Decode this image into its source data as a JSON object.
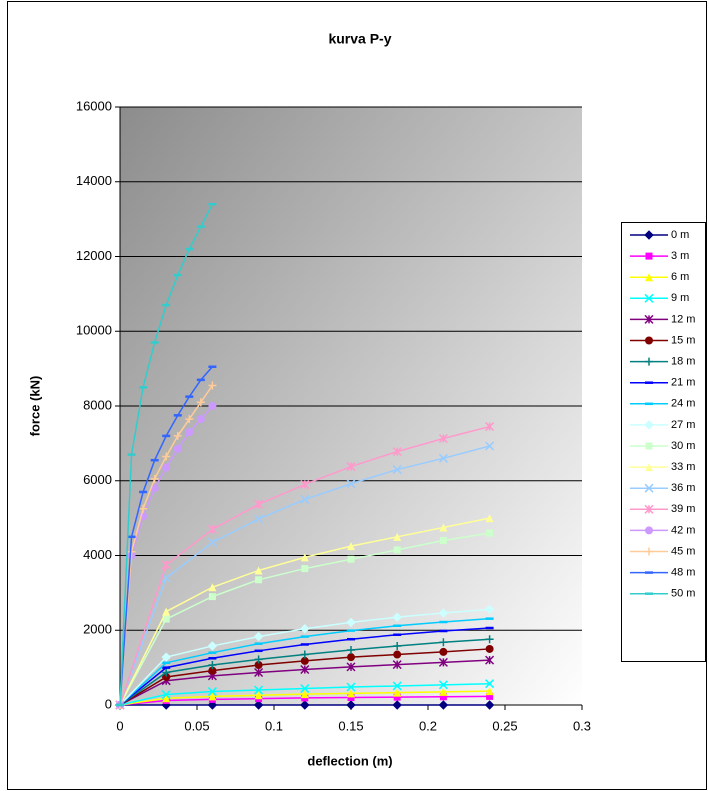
{
  "chart_data": {
    "type": "line",
    "title": "kurva P-y",
    "x_label": "deflection (m)",
    "y_label": "force (kN)",
    "xlim": [
      0,
      0.3
    ],
    "xticks": [
      0,
      0.05,
      0.1,
      0.15,
      0.2,
      0.25,
      0.3
    ],
    "ylim": [
      0,
      16000
    ],
    "yticks": [
      0,
      2000,
      4000,
      6000,
      8000,
      10000,
      12000,
      14000,
      16000
    ],
    "grid": true,
    "legend": "right",
    "series": [
      {
        "name": "0 m",
        "color": "#000080",
        "marker": "diamond",
        "x": [
          0,
          0.03,
          0.06,
          0.09,
          0.12,
          0.15,
          0.18,
          0.21,
          0.24
        ],
        "values": [
          0,
          0,
          0,
          0,
          0,
          0,
          0,
          0,
          0
        ]
      },
      {
        "name": "3 m",
        "color": "#ff00ff",
        "marker": "square",
        "x": [
          0,
          0.03,
          0.06,
          0.09,
          0.12,
          0.15,
          0.18,
          0.21,
          0.24
        ],
        "values": [
          0,
          120,
          150,
          170,
          190,
          200,
          210,
          220,
          230
        ]
      },
      {
        "name": "6 m",
        "color": "#ffff00",
        "marker": "triangle",
        "x": [
          0,
          0.03,
          0.06,
          0.09,
          0.12,
          0.15,
          0.18,
          0.21,
          0.24
        ],
        "values": [
          0,
          180,
          230,
          260,
          290,
          310,
          330,
          350,
          370
        ]
      },
      {
        "name": "9 m",
        "color": "#00ffff",
        "marker": "x",
        "x": [
          0,
          0.03,
          0.06,
          0.09,
          0.12,
          0.15,
          0.18,
          0.21,
          0.24
        ],
        "values": [
          0,
          280,
          360,
          400,
          440,
          480,
          510,
          540,
          570
        ]
      },
      {
        "name": "12 m",
        "color": "#800080",
        "marker": "star",
        "x": [
          0,
          0.03,
          0.06,
          0.09,
          0.12,
          0.15,
          0.18,
          0.21,
          0.24
        ],
        "values": [
          0,
          650,
          780,
          870,
          950,
          1020,
          1080,
          1140,
          1200
        ]
      },
      {
        "name": "15 m",
        "color": "#800000",
        "marker": "circle",
        "x": [
          0,
          0.03,
          0.06,
          0.09,
          0.12,
          0.15,
          0.18,
          0.21,
          0.24
        ],
        "values": [
          0,
          750,
          920,
          1070,
          1180,
          1280,
          1350,
          1420,
          1500
        ]
      },
      {
        "name": "18 m",
        "color": "#008080",
        "marker": "plus",
        "x": [
          0,
          0.03,
          0.06,
          0.09,
          0.12,
          0.15,
          0.18,
          0.21,
          0.24
        ],
        "values": [
          0,
          870,
          1070,
          1220,
          1350,
          1470,
          1580,
          1680,
          1760
        ]
      },
      {
        "name": "21 m",
        "color": "#0000ff",
        "marker": "dash",
        "x": [
          0,
          0.03,
          0.06,
          0.09,
          0.12,
          0.15,
          0.18,
          0.21,
          0.24
        ],
        "values": [
          0,
          1000,
          1250,
          1450,
          1620,
          1760,
          1880,
          1980,
          2060
        ]
      },
      {
        "name": "24 m",
        "color": "#00ccff",
        "marker": "dash",
        "x": [
          0,
          0.03,
          0.06,
          0.09,
          0.12,
          0.15,
          0.18,
          0.21,
          0.24
        ],
        "values": [
          0,
          1130,
          1400,
          1640,
          1830,
          1990,
          2120,
          2220,
          2310
        ]
      },
      {
        "name": "27 m",
        "color": "#ccffff",
        "marker": "diamond",
        "x": [
          0,
          0.03,
          0.06,
          0.09,
          0.12,
          0.15,
          0.18,
          0.21,
          0.24
        ],
        "values": [
          0,
          1280,
          1580,
          1830,
          2040,
          2210,
          2350,
          2460,
          2560
        ]
      },
      {
        "name": "30 m",
        "color": "#ccffcc",
        "marker": "square",
        "x": [
          0,
          0.03,
          0.06,
          0.09,
          0.12,
          0.15,
          0.18,
          0.21,
          0.24
        ],
        "values": [
          0,
          2300,
          2900,
          3350,
          3650,
          3900,
          4150,
          4400,
          4600
        ]
      },
      {
        "name": "33 m",
        "color": "#ffff99",
        "marker": "triangle",
        "x": [
          0,
          0.03,
          0.06,
          0.09,
          0.12,
          0.15,
          0.18,
          0.21,
          0.24
        ],
        "values": [
          0,
          2500,
          3150,
          3600,
          3950,
          4250,
          4500,
          4750,
          5000
        ]
      },
      {
        "name": "36 m",
        "color": "#99ccff",
        "marker": "x",
        "x": [
          0,
          0.03,
          0.06,
          0.09,
          0.12,
          0.15,
          0.18,
          0.21,
          0.24
        ],
        "values": [
          0,
          3400,
          4350,
          4980,
          5500,
          5920,
          6300,
          6600,
          6930
        ]
      },
      {
        "name": "39 m",
        "color": "#ff99cc",
        "marker": "star",
        "x": [
          0,
          0.03,
          0.06,
          0.09,
          0.12,
          0.15,
          0.18,
          0.21,
          0.24
        ],
        "values": [
          0,
          3750,
          4700,
          5370,
          5900,
          6380,
          6780,
          7130,
          7450
        ]
      },
      {
        "name": "42 m",
        "color": "#cc99ff",
        "marker": "circle",
        "x": [
          0,
          0.0075,
          0.015,
          0.0225,
          0.03,
          0.0375,
          0.045,
          0.0525,
          0.06
        ],
        "values": [
          0,
          4000,
          5050,
          5800,
          6350,
          6850,
          7300,
          7650,
          8000
        ]
      },
      {
        "name": "45 m",
        "color": "#ffcc99",
        "marker": "plus",
        "x": [
          0,
          0.0075,
          0.015,
          0.0225,
          0.03,
          0.0375,
          0.045,
          0.0525,
          0.06
        ],
        "values": [
          0,
          4100,
          5250,
          6050,
          6650,
          7200,
          7650,
          8100,
          8550
        ]
      },
      {
        "name": "48 m",
        "color": "#3366ff",
        "marker": "dash",
        "x": [
          0,
          0.0075,
          0.015,
          0.0225,
          0.03,
          0.0375,
          0.045,
          0.0525,
          0.06
        ],
        "values": [
          0,
          4500,
          5700,
          6550,
          7200,
          7750,
          8250,
          8700,
          9050
        ]
      },
      {
        "name": "50 m",
        "color": "#33cccc",
        "marker": "dash",
        "x": [
          0,
          0.0075,
          0.015,
          0.0225,
          0.03,
          0.0375,
          0.045,
          0.0525,
          0.06
        ],
        "values": [
          0,
          6700,
          8500,
          9700,
          10700,
          11500,
          12200,
          12800,
          13400
        ]
      }
    ]
  }
}
